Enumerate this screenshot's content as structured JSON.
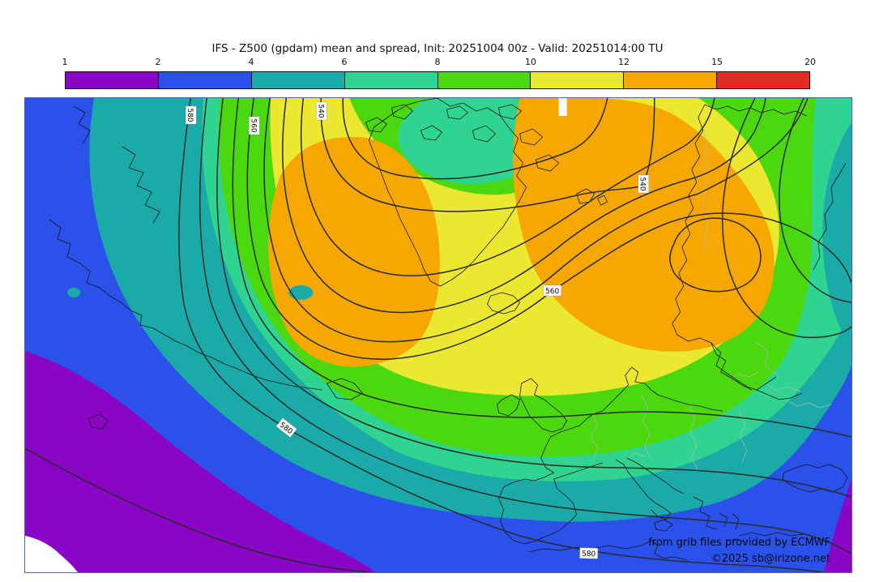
{
  "title": "IFS - Z500 (gpdam) mean and spread, Init: 20251004 00z - Valid: 20251014:00 TU",
  "colorbar": {
    "unit": "gpdam",
    "tick_labels": [
      "1",
      "2",
      "4",
      "6",
      "8",
      "10",
      "12",
      "15",
      "20"
    ],
    "segments": [
      {
        "range": "1-2",
        "color": "#8a05c5"
      },
      {
        "range": "2-4",
        "color": "#2a52ea"
      },
      {
        "range": "4-6",
        "color": "#1aaaa8"
      },
      {
        "range": "6-8",
        "color": "#30d492"
      },
      {
        "range": "8-10",
        "color": "#4cd80e"
      },
      {
        "range": "10-12",
        "color": "#ece832"
      },
      {
        "range": "12-15",
        "color": "#f6a702"
      },
      {
        "range": "15-20",
        "color": "#e32a23"
      }
    ]
  },
  "map": {
    "contour_labels": [
      "580",
      "560",
      "540",
      "540",
      "560",
      "580",
      "580"
    ]
  },
  "attribution": {
    "line1": "from grib files provided by ECMWF",
    "line2": "©2025 sb@irizone.net"
  }
}
